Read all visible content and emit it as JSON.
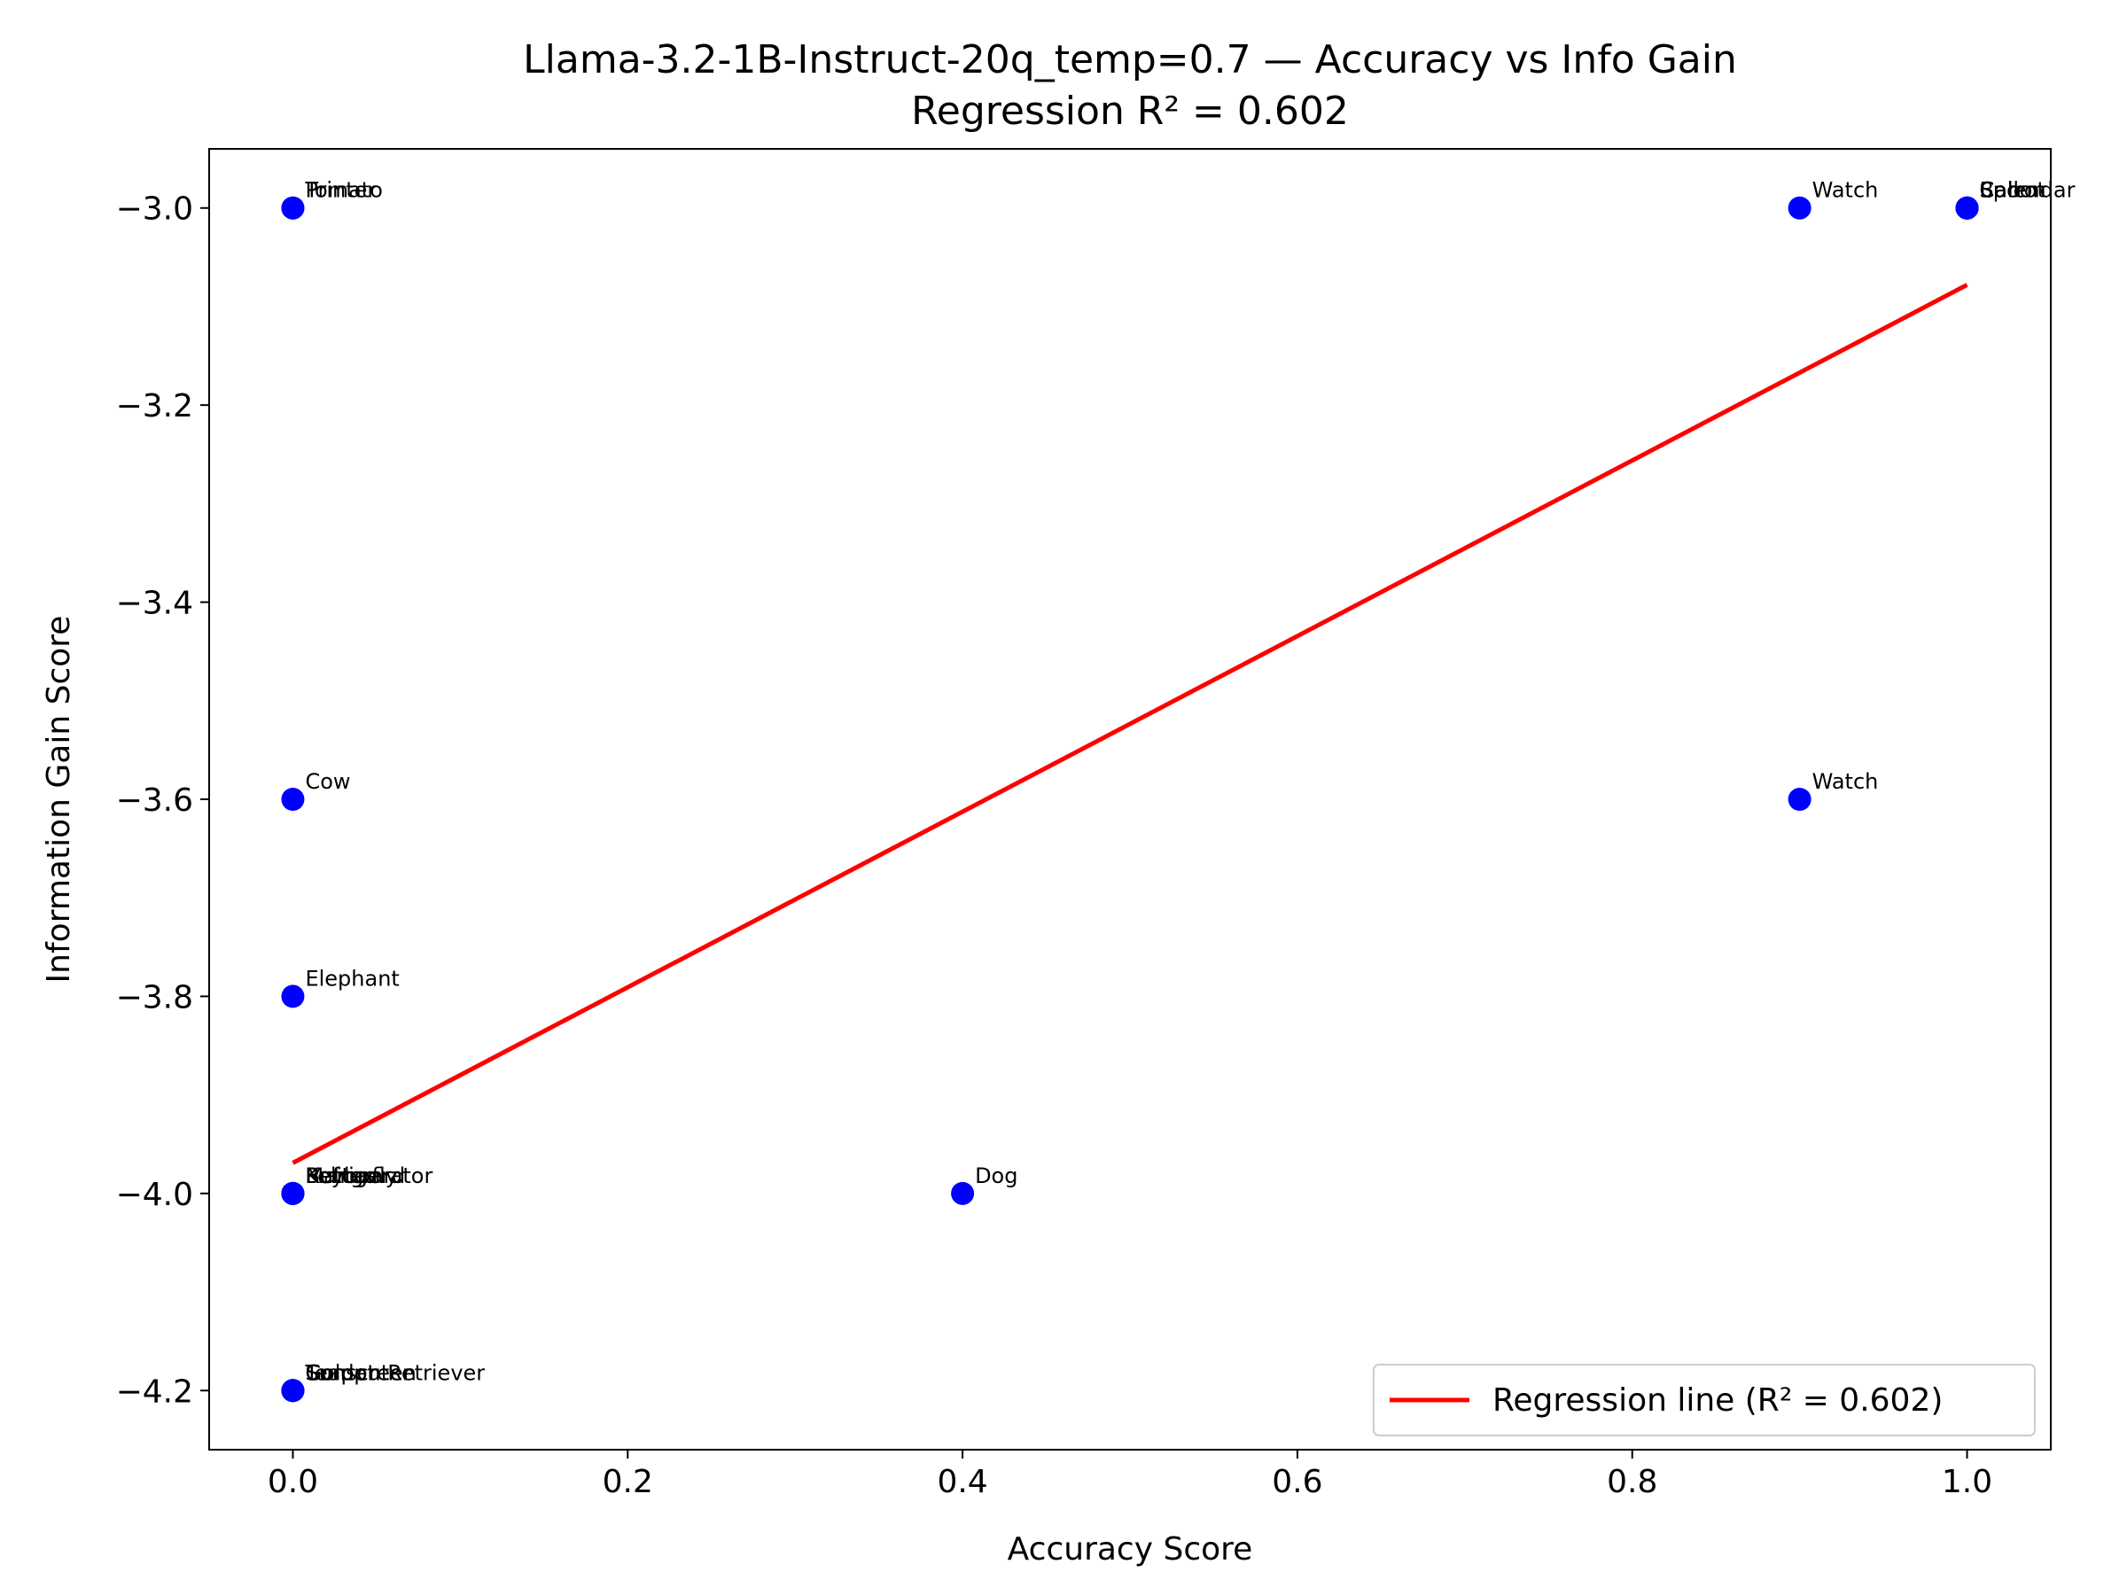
{
  "chart_data": {
    "type": "scatter",
    "title": "Llama-3.2-1B-Instruct-20q_temp=0.7 — Accuracy vs Info Gain",
    "subtitle": "Regression R² = 0.602",
    "xlabel": "Accuracy Score",
    "ylabel": "Information Gain Score",
    "xlim": [
      -0.05,
      1.05
    ],
    "ylim": [
      -4.26,
      -2.94
    ],
    "xticks": [
      0.0,
      0.2,
      0.4,
      0.6,
      0.8,
      1.0
    ],
    "xtick_labels": [
      "0.0",
      "0.2",
      "0.4",
      "0.6",
      "0.8",
      "1.0"
    ],
    "yticks": [
      -3.0,
      -3.2,
      -3.4,
      -3.6,
      -3.8,
      -4.0,
      -4.2
    ],
    "ytick_labels": [
      "−3.0",
      "−3.2",
      "−3.4",
      "−3.6",
      "−3.8",
      "−4.0",
      "−4.2"
    ],
    "grid": false,
    "point_color": "#0000ff",
    "points": [
      {
        "x": 0.0,
        "y": -3.0,
        "label": "Tomato"
      },
      {
        "x": 0.0,
        "y": -3.0,
        "label": "Printer"
      },
      {
        "x": 0.9,
        "y": -3.0,
        "label": "Watch"
      },
      {
        "x": 1.0,
        "y": -3.0,
        "label": "Calendar"
      },
      {
        "x": 1.0,
        "y": -3.0,
        "label": "Spoon"
      },
      {
        "x": 1.0,
        "y": -3.0,
        "label": "Ball"
      },
      {
        "x": 1.0,
        "y": -3.0,
        "label": "Carrot"
      },
      {
        "x": 0.0,
        "y": -3.6,
        "label": "Cow"
      },
      {
        "x": 0.9,
        "y": -3.6,
        "label": "Watch"
      },
      {
        "x": 0.0,
        "y": -3.8,
        "label": "Elephant"
      },
      {
        "x": 0.0,
        "y": -4.0,
        "label": "Refrigerator"
      },
      {
        "x": 0.0,
        "y": -4.0,
        "label": "Pelican"
      },
      {
        "x": 0.0,
        "y": -4.0,
        "label": "Keyboard"
      },
      {
        "x": 0.0,
        "y": -4.0,
        "label": "Mango"
      },
      {
        "x": 0.0,
        "y": -4.0,
        "label": "Butterfly"
      },
      {
        "x": 0.4,
        "y": -4.0,
        "label": "Dog"
      },
      {
        "x": 0.0,
        "y": -4.2,
        "label": "Golden Retriever"
      },
      {
        "x": 0.0,
        "y": -4.2,
        "label": "Computer"
      },
      {
        "x": 0.0,
        "y": -4.2,
        "label": "Sunscreen"
      },
      {
        "x": 0.0,
        "y": -4.2,
        "label": "Teapot"
      }
    ],
    "regression": {
      "x": [
        0.0,
        1.0
      ],
      "y": [
        -3.969,
        -3.078
      ],
      "color": "#ff0000",
      "name": "Regression line (R² = 0.602)"
    },
    "legend_position": "lower-right"
  }
}
